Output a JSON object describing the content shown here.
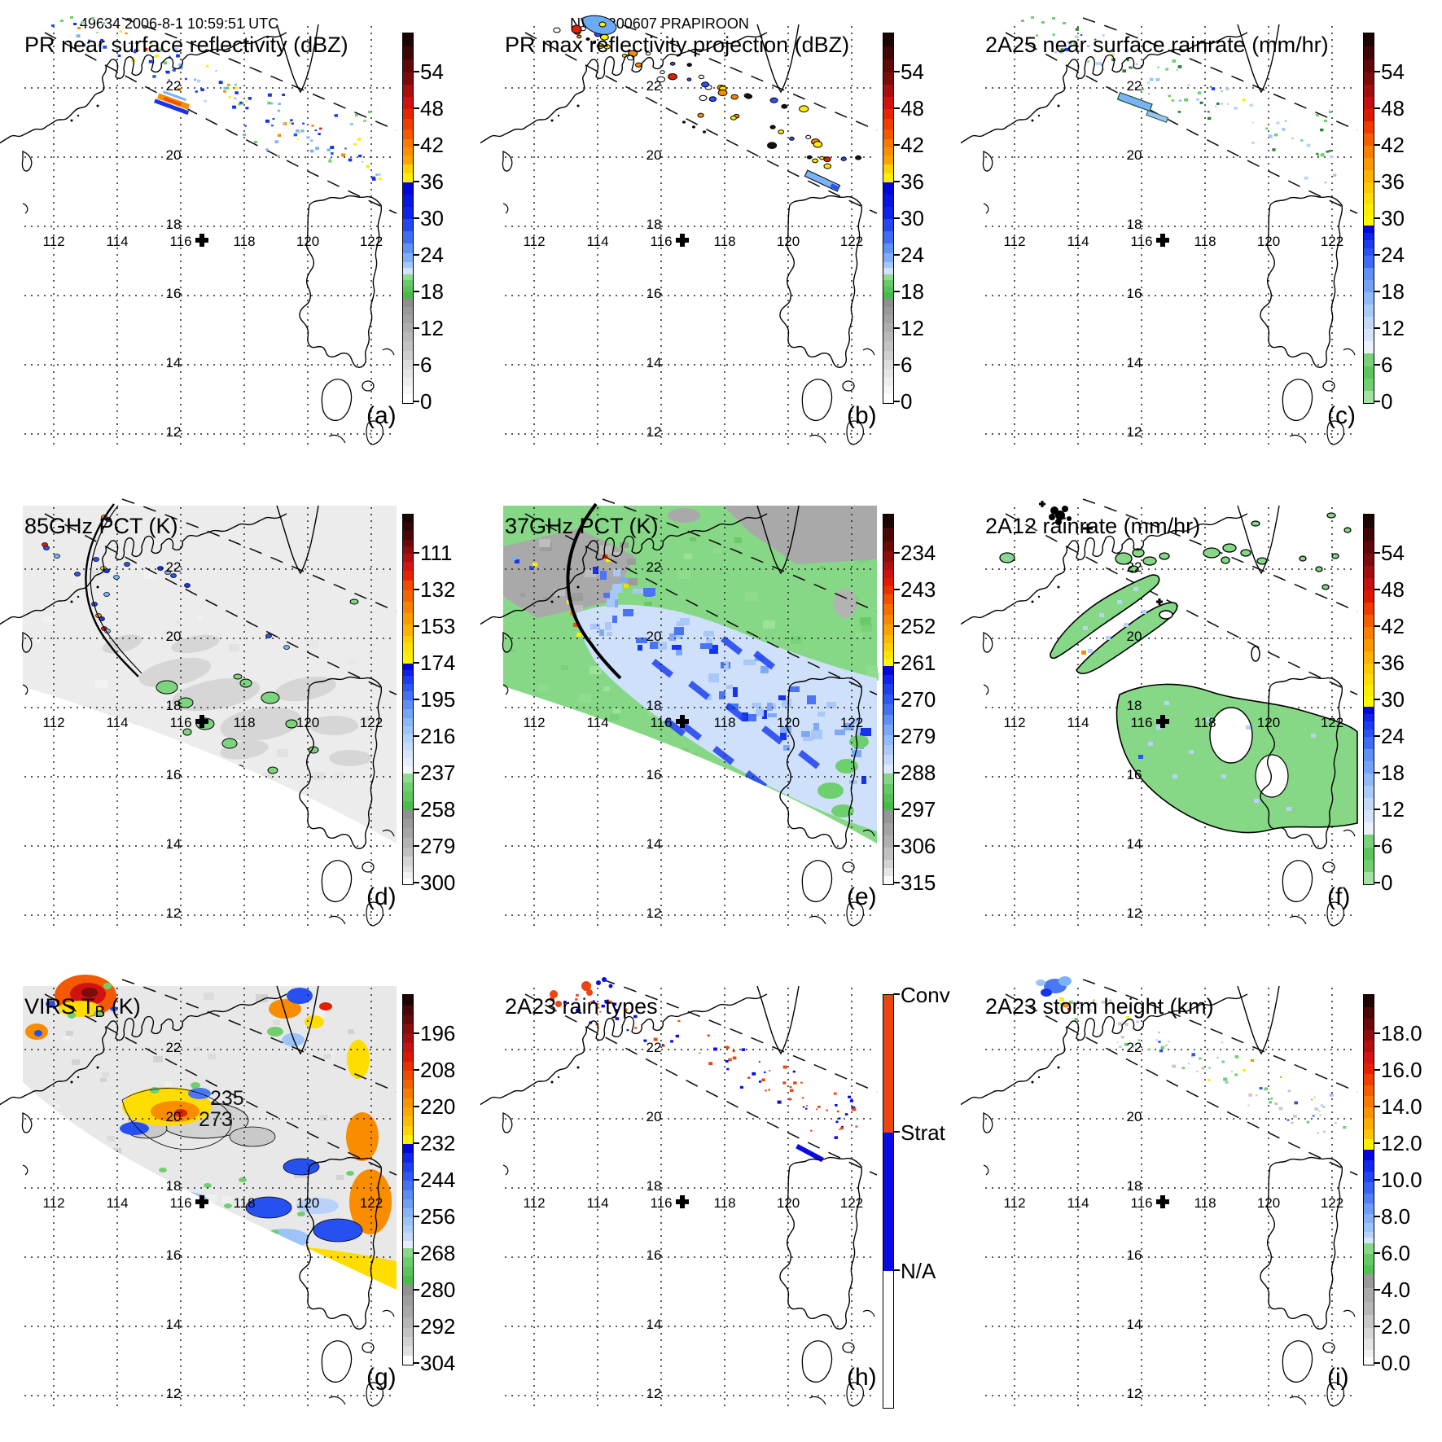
{
  "figure": {
    "header_left": "49634 2006-8-1 10:59:51 UTC",
    "header_center": "NWP 200607 PRAPIROON"
  },
  "map": {
    "lon_labels": [
      "112",
      "114",
      "116",
      "118",
      "120",
      "122"
    ],
    "lat_labels": [
      "22",
      "20",
      "18",
      "16",
      "14",
      "12"
    ]
  },
  "panels": [
    {
      "id": "a",
      "letter": "(a)",
      "title": "PR near surface reflectivity (dBZ)",
      "header": "49634 2006-8-1 10:59:51 UTC",
      "colorbar": {
        "ticks": [
          "54",
          "48",
          "42",
          "36",
          "30",
          "24",
          "18",
          "12",
          "6",
          "0"
        ]
      }
    },
    {
      "id": "b",
      "letter": "(b)",
      "title": "PR max reflectivity projection (dBZ)",
      "header": "NWP 200607 PRAPIROON",
      "colorbar": {
        "ticks": [
          "54",
          "48",
          "42",
          "36",
          "30",
          "24",
          "18",
          "12",
          "6",
          "0"
        ]
      }
    },
    {
      "id": "c",
      "letter": "(c)",
      "title": "2A25 near surface rainrate (mm/hr)",
      "colorbar": {
        "ticks": [
          "54",
          "48",
          "42",
          "36",
          "30",
          "24",
          "18",
          "12",
          "6",
          "0"
        ]
      }
    },
    {
      "id": "d",
      "letter": "(d)",
      "title": "85GHz PCT (K)",
      "colorbar": {
        "ticks": [
          "111",
          "132",
          "153",
          "174",
          "195",
          "216",
          "237",
          "258",
          "279",
          "300"
        ]
      }
    },
    {
      "id": "e",
      "letter": "(e)",
      "title": "37GHz PCT (K)",
      "colorbar": {
        "ticks": [
          "234",
          "243",
          "252",
          "261",
          "270",
          "279",
          "288",
          "297",
          "306",
          "315"
        ]
      }
    },
    {
      "id": "f",
      "letter": "(f)",
      "title": "2A12 rainrate (mm/hr)",
      "colorbar": {
        "ticks": [
          "54",
          "48",
          "42",
          "36",
          "30",
          "24",
          "18",
          "12",
          "6",
          "0"
        ]
      }
    },
    {
      "id": "g",
      "letter": "(g)",
      "title": "VIRS T",
      "title_sub": "B",
      "title_suffix": " (K)",
      "colorbar": {
        "ticks": [
          "196",
          "208",
          "220",
          "232",
          "244",
          "256",
          "268",
          "280",
          "292",
          "304"
        ]
      },
      "contour_labels": [
        "235",
        "273"
      ]
    },
    {
      "id": "h",
      "letter": "(h)",
      "title": "2A23 rain types",
      "colorbar": {
        "labels": [
          "Conv",
          "Strat",
          "N/A"
        ]
      }
    },
    {
      "id": "i",
      "letter": "(i)",
      "title": "2A23 storm height (km)",
      "colorbar": {
        "ticks": [
          "18.0",
          "16.0",
          "14.0",
          "12.0",
          "10.0",
          "8.0",
          "6.0",
          "4.0",
          "2.0",
          "0.0"
        ]
      }
    }
  ],
  "chart_data": {
    "type": "heatmap",
    "subtype": "3x3 satellite/radar map panels, TRMM overpass of typhoon PRAPIROON",
    "overpass_label": "49634 2006-8-1 10:59:51 UTC",
    "storm_label": "NWP 200607 PRAPIROON",
    "geographic_extent": {
      "lon": [
        110.6,
        123.2
      ],
      "lat": [
        11.3,
        23.3
      ]
    },
    "lon_gridlines": [
      112,
      114,
      116,
      118,
      120,
      122
    ],
    "lat_gridlines": [
      12,
      14,
      16,
      18,
      20,
      22
    ],
    "storm_center_marker_lonlat": [
      116.6,
      17.7
    ],
    "panels": [
      {
        "panel": "a",
        "title": "PR near surface reflectivity (dBZ)",
        "units": "dBZ",
        "colorbar_ticks": [
          54,
          48,
          42,
          36,
          30,
          24,
          18,
          12,
          6,
          0
        ]
      },
      {
        "panel": "b",
        "title": "PR max reflectivity projection (dBZ)",
        "units": "dBZ",
        "colorbar_ticks": [
          54,
          48,
          42,
          36,
          30,
          24,
          18,
          12,
          6,
          0
        ]
      },
      {
        "panel": "c",
        "title": "2A25 near surface rainrate (mm/hr)",
        "units": "mm/hr",
        "colorbar_ticks": [
          54,
          48,
          42,
          36,
          30,
          24,
          18,
          12,
          6,
          0
        ]
      },
      {
        "panel": "d",
        "title": "85GHz PCT (K)",
        "units": "K",
        "colorbar_ticks": [
          111,
          132,
          153,
          174,
          195,
          216,
          237,
          258,
          279,
          300
        ]
      },
      {
        "panel": "e",
        "title": "37GHz PCT (K)",
        "units": "K",
        "colorbar_ticks": [
          234,
          243,
          252,
          261,
          270,
          279,
          288,
          297,
          306,
          315
        ]
      },
      {
        "panel": "f",
        "title": "2A12 rainrate (mm/hr)",
        "units": "mm/hr",
        "colorbar_ticks": [
          54,
          48,
          42,
          36,
          30,
          24,
          18,
          12,
          6,
          0
        ]
      },
      {
        "panel": "g",
        "title": "VIRS TB (K)",
        "units": "K",
        "colorbar_ticks": [
          196,
          208,
          220,
          232,
          244,
          256,
          268,
          280,
          292,
          304
        ],
        "contour_annotations": [
          235,
          273
        ]
      },
      {
        "panel": "h",
        "title": "2A23 rain types",
        "categories": [
          "Conv",
          "Strat",
          "N/A"
        ],
        "category_colors": {
          "Conv": "#ee4411",
          "Strat": "#0a0ae8",
          "N/A": "#ffffff"
        }
      },
      {
        "panel": "i",
        "title": "2A23 storm height (km)",
        "units": "km",
        "colorbar_ticks": [
          18,
          16,
          14,
          12,
          10,
          8,
          6,
          4,
          2,
          0
        ]
      }
    ]
  }
}
